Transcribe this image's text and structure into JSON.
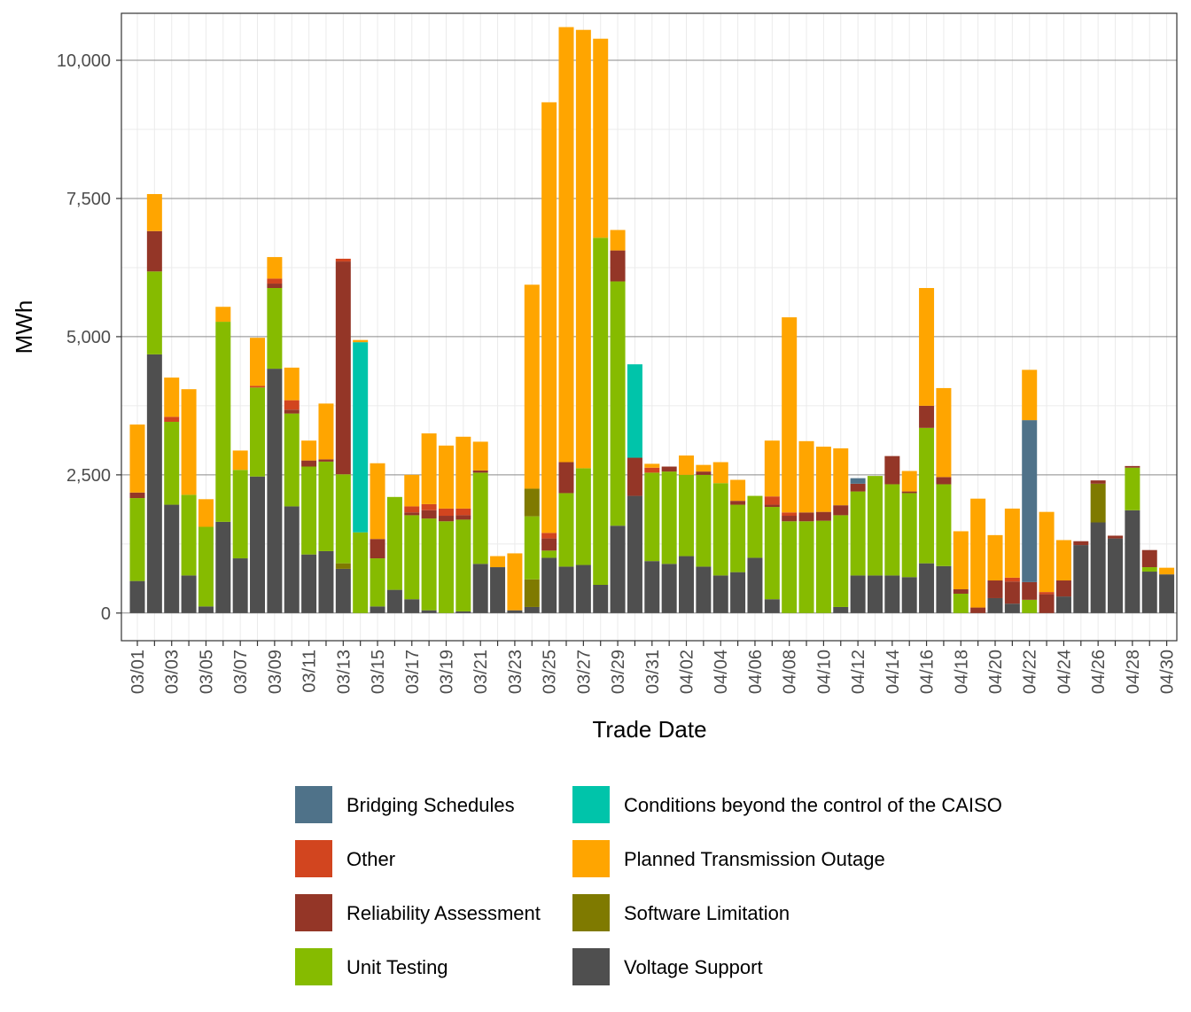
{
  "chart_data": {
    "type": "stacked-bar",
    "xlabel": "Trade Date",
    "ylabel": "MWh",
    "ylim": [
      -500,
      10850
    ],
    "yticks": [
      0,
      2500,
      5000,
      7500,
      10000
    ],
    "ytick_labels": [
      "0",
      "2,500",
      "5,000",
      "7,500",
      "10,000"
    ],
    "grid": true,
    "legend_position": "bottom",
    "categories": [
      "03/01",
      "03/02",
      "03/03",
      "03/04",
      "03/05",
      "03/06",
      "03/07",
      "03/08",
      "03/09",
      "03/10",
      "03/11",
      "03/12",
      "03/13",
      "03/14",
      "03/15",
      "03/16",
      "03/17",
      "03/18",
      "03/19",
      "03/20",
      "03/21",
      "03/22",
      "03/23",
      "03/24",
      "03/25",
      "03/26",
      "03/27",
      "03/28",
      "03/29",
      "03/30",
      "03/31",
      "04/01",
      "04/02",
      "04/03",
      "04/04",
      "04/05",
      "04/06",
      "04/07",
      "04/08",
      "04/09",
      "04/10",
      "04/11",
      "04/12",
      "04/13",
      "04/14",
      "04/15",
      "04/16",
      "04/17",
      "04/18",
      "04/19",
      "04/20",
      "04/21",
      "04/22",
      "04/23",
      "04/24",
      "04/25",
      "04/26",
      "04/27",
      "04/28",
      "04/29",
      "04/30"
    ],
    "xtick_labels": [
      "03/01",
      "03/03",
      "03/05",
      "03/07",
      "03/09",
      "03/11",
      "03/13",
      "03/15",
      "03/17",
      "03/19",
      "03/21",
      "03/23",
      "03/25",
      "03/27",
      "03/29",
      "03/31",
      "04/02",
      "04/04",
      "04/06",
      "04/08",
      "04/10",
      "04/12",
      "04/14",
      "04/16",
      "04/18",
      "04/20",
      "04/22",
      "04/24",
      "04/26",
      "04/28",
      "04/30"
    ],
    "series": [
      {
        "name": "Voltage Support",
        "color": "#4f4f4f",
        "values": [
          580,
          4680,
          1960,
          680,
          120,
          1650,
          990,
          2470,
          4420,
          1930,
          1060,
          1120,
          800,
          0,
          120,
          420,
          250,
          50,
          0,
          30,
          890,
          830,
          50,
          110,
          1000,
          840,
          870,
          510,
          1580,
          2120,
          940,
          890,
          1030,
          840,
          680,
          740,
          1000,
          250,
          0,
          0,
          0,
          110,
          680,
          680,
          680,
          650,
          900,
          850,
          0,
          0,
          270,
          170,
          0,
          0,
          300,
          1230,
          1640,
          1350,
          1860,
          750,
          700
        ]
      },
      {
        "name": "Software Limitation",
        "color": "#7f7a00",
        "values": [
          0,
          0,
          0,
          0,
          0,
          0,
          0,
          0,
          0,
          0,
          0,
          0,
          100,
          0,
          0,
          0,
          0,
          0,
          0,
          0,
          0,
          0,
          0,
          500,
          0,
          0,
          0,
          0,
          0,
          0,
          0,
          0,
          0,
          0,
          0,
          0,
          0,
          0,
          0,
          0,
          0,
          0,
          0,
          0,
          0,
          0,
          0,
          0,
          0,
          0,
          0,
          0,
          0,
          0,
          0,
          0,
          700,
          0,
          0,
          0,
          0
        ]
      },
      {
        "name": "Unit Testing",
        "color": "#86bb00",
        "values": [
          1500,
          1500,
          1500,
          1460,
          1440,
          3620,
          1600,
          1610,
          1460,
          1680,
          1590,
          1620,
          1610,
          1460,
          870,
          1680,
          1520,
          1660,
          1660,
          1660,
          1650,
          0,
          0,
          1140,
          130,
          1330,
          1750,
          6280,
          4420,
          0,
          1600,
          1670,
          1470,
          1660,
          1670,
          1220,
          1120,
          1670,
          1660,
          1660,
          1670,
          1660,
          1520,
          1800,
          1650,
          1520,
          2450,
          1480,
          350,
          0,
          0,
          0,
          240,
          0,
          0,
          0,
          0,
          0,
          770,
          80,
          0
        ]
      },
      {
        "name": "Reliability Assessment",
        "color": "#943627",
        "values": [
          100,
          730,
          0,
          0,
          0,
          0,
          0,
          0,
          80,
          70,
          110,
          40,
          3850,
          0,
          350,
          0,
          50,
          150,
          100,
          80,
          40,
          0,
          0,
          0,
          220,
          560,
          0,
          0,
          560,
          690,
          0,
          90,
          0,
          60,
          0,
          70,
          0,
          40,
          100,
          160,
          160,
          180,
          140,
          0,
          510,
          30,
          400,
          130,
          80,
          100,
          320,
          400,
          320,
          340,
          290,
          70,
          60,
          50,
          30,
          310,
          0
        ]
      },
      {
        "name": "Software Limitation",
        "color": "#7f7a00",
        "values": [
          0,
          0,
          0,
          0,
          0,
          0,
          0,
          0,
          0,
          0,
          0,
          0,
          0,
          0,
          0,
          0,
          0,
          0,
          0,
          0,
          0,
          0,
          0,
          500,
          0,
          0,
          0,
          0,
          0,
          0,
          0,
          0,
          0,
          0,
          0,
          0,
          0,
          0,
          0,
          0,
          0,
          0,
          0,
          0,
          0,
          0,
          0,
          0,
          0,
          0,
          0,
          0,
          0,
          0,
          0,
          0,
          0,
          0,
          0,
          0,
          0
        ]
      },
      {
        "name": "Conditions beyond the control of the CAISO",
        "color": "#00c4aa",
        "values": [
          0,
          0,
          0,
          0,
          0,
          0,
          0,
          0,
          0,
          0,
          0,
          0,
          0,
          3440,
          0,
          0,
          0,
          0,
          0,
          0,
          0,
          0,
          0,
          0,
          0,
          0,
          0,
          0,
          0,
          1690,
          0,
          0,
          0,
          0,
          0,
          0,
          0,
          0,
          0,
          0,
          0,
          0,
          0,
          0,
          0,
          0,
          0,
          0,
          0,
          0,
          0,
          0,
          0,
          0,
          0,
          0,
          0,
          0,
          0,
          0,
          0
        ]
      },
      {
        "name": "Bridging Schedules",
        "color": "#4f7289",
        "values": [
          0,
          0,
          0,
          0,
          0,
          0,
          0,
          0,
          0,
          0,
          0,
          0,
          0,
          0,
          0,
          0,
          0,
          0,
          0,
          0,
          0,
          0,
          0,
          0,
          0,
          0,
          0,
          0,
          0,
          0,
          0,
          0,
          0,
          0,
          0,
          0,
          0,
          0,
          0,
          0,
          0,
          0,
          100,
          0,
          0,
          0,
          0,
          0,
          0,
          0,
          0,
          0,
          2930,
          0,
          0,
          0,
          0,
          0,
          0,
          0,
          0
        ]
      },
      {
        "name": "Other",
        "color": "#d2451f",
        "values": [
          0,
          0,
          90,
          0,
          0,
          0,
          0,
          30,
          90,
          170,
          0,
          0,
          50,
          0,
          0,
          0,
          110,
          110,
          130,
          120,
          0,
          0,
          0,
          0,
          100,
          0,
          0,
          0,
          0,
          0,
          90,
          0,
          0,
          0,
          0,
          0,
          0,
          150,
          60,
          0,
          0,
          0,
          0,
          0,
          0,
          0,
          0,
          0,
          0,
          0,
          0,
          70,
          0,
          40,
          0,
          0,
          0,
          0,
          0,
          0,
          0
        ]
      },
      {
        "name": "Planned Transmission Outage",
        "color": "#ffa500",
        "values": [
          1230,
          670,
          710,
          1910,
          500,
          270,
          350,
          870,
          390,
          590,
          360,
          1010,
          0,
          40,
          1370,
          0,
          570,
          1280,
          1140,
          1300,
          520,
          200,
          1030,
          3690,
          7790,
          7870,
          7930,
          3600,
          370,
          0,
          70,
          0,
          350,
          120,
          380,
          380,
          0,
          1010,
          3530,
          1290,
          1180,
          1030,
          0,
          0,
          0,
          370,
          2130,
          1610,
          1050,
          1970,
          820,
          1250,
          910,
          1450,
          730,
          0,
          0,
          0,
          0,
          0,
          120
        ]
      }
    ]
  },
  "legend": [
    {
      "name": "Bridging Schedules",
      "color": "#4f7289"
    },
    {
      "name": "Other",
      "color": "#d2451f"
    },
    {
      "name": "Reliability Assessment",
      "color": "#943627"
    },
    {
      "name": "Unit Testing",
      "color": "#86bb00"
    },
    {
      "name": "Conditions beyond the control of the CAISO",
      "color": "#00c4aa"
    },
    {
      "name": "Planned Transmission Outage",
      "color": "#ffa500"
    },
    {
      "name": "Software Limitation",
      "color": "#7f7a00"
    },
    {
      "name": "Voltage Support",
      "color": "#4f4f4f"
    }
  ]
}
